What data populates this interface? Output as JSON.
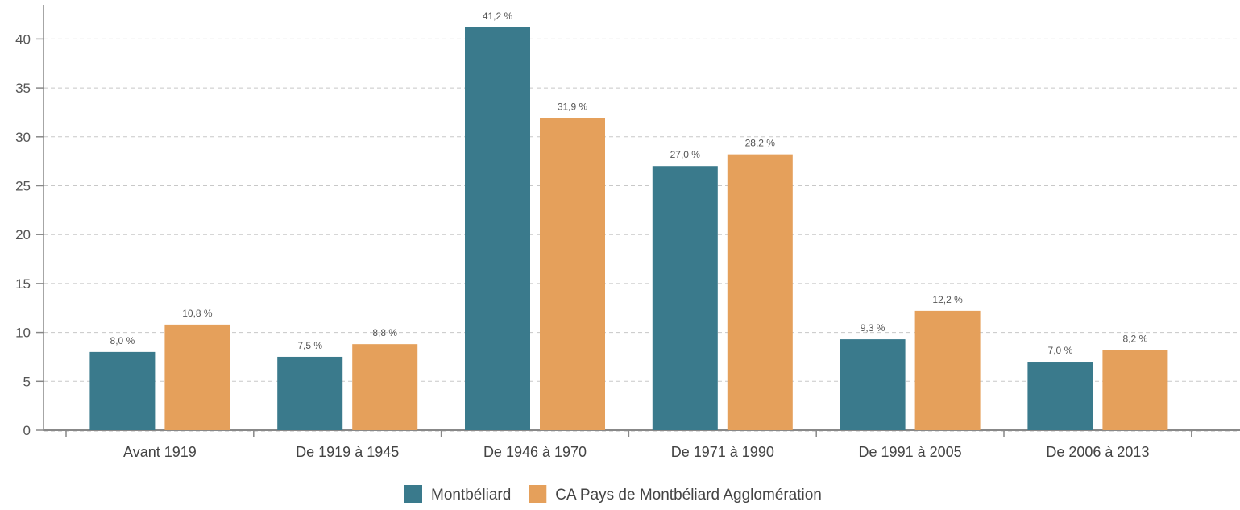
{
  "chart_data": {
    "type": "bar",
    "title": "",
    "xlabel": "",
    "ylabel": "",
    "ylim": [
      0,
      43
    ],
    "yticks": [
      0,
      5,
      10,
      15,
      20,
      25,
      30,
      35,
      40
    ],
    "grid": true,
    "legend_position": "bottom",
    "categories": [
      "Avant 1919",
      "De 1919 à 1945",
      "De 1946 à 1970",
      "De 1971 à 1990",
      "De 1991 à 2005",
      "De 2006 à 2013"
    ],
    "series": [
      {
        "name": "Montbéliard",
        "color": "#3a7a8c",
        "values": [
          8.0,
          7.5,
          41.2,
          27.0,
          9.3,
          7.0
        ],
        "labels": [
          "8,0 %",
          "7,5 %",
          "41,2 %",
          "27,0 %",
          "9,3 %",
          "7,0 %"
        ]
      },
      {
        "name": "CA Pays de Montbéliard Agglomération",
        "color": "#e5a05b",
        "values": [
          10.8,
          8.8,
          31.9,
          28.2,
          12.2,
          8.2
        ],
        "labels": [
          "10,8 %",
          "8,8 %",
          "31,9 %",
          "28,2 %",
          "12,2 %",
          "8,2 %"
        ]
      }
    ]
  }
}
